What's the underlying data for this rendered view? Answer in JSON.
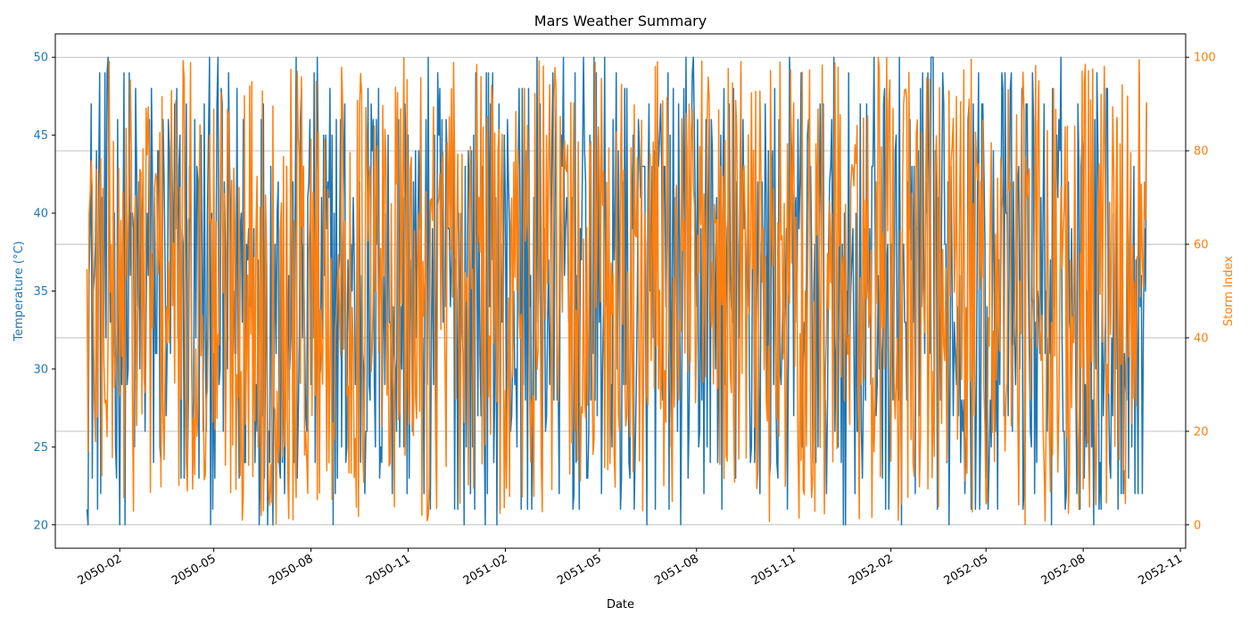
{
  "chart_data": {
    "type": "line",
    "title": "Mars Weather Summary",
    "xlabel": "Date",
    "xlim": [
      "2049-12-02",
      "2052-11-06"
    ],
    "x_start": "2050-01-01",
    "x_end": "2052-09-30",
    "x_step_days": 1,
    "x_ticks": [
      {
        "date": "2050-02-01",
        "label": "2050-02"
      },
      {
        "date": "2050-05-01",
        "label": "2050-05"
      },
      {
        "date": "2050-08-01",
        "label": "2050-08"
      },
      {
        "date": "2050-11-01",
        "label": "2050-11"
      },
      {
        "date": "2051-02-01",
        "label": "2051-02"
      },
      {
        "date": "2051-05-01",
        "label": "2051-05"
      },
      {
        "date": "2051-08-01",
        "label": "2051-08"
      },
      {
        "date": "2051-11-01",
        "label": "2051-11"
      },
      {
        "date": "2052-02-01",
        "label": "2052-02"
      },
      {
        "date": "2052-05-01",
        "label": "2052-05"
      },
      {
        "date": "2052-08-01",
        "label": "2052-08"
      },
      {
        "date": "2052-11-01",
        "label": "2052-11"
      }
    ],
    "y_left": {
      "label": "Temperature (°C)",
      "ylim": [
        18.5,
        51.5
      ],
      "ticks": [
        20,
        25,
        30,
        35,
        40,
        45,
        50
      ],
      "color": "#1f77b4"
    },
    "y_right": {
      "label": "Storm Index",
      "ylim": [
        -5,
        105
      ],
      "ticks": [
        0,
        20,
        40,
        60,
        80,
        100
      ],
      "color": "#ff7f0e",
      "grid": true
    },
    "series": [
      {
        "axis": "left",
        "color": "#1f77b4",
        "values_min": 20,
        "values_max": 50,
        "values_integer": true
      },
      {
        "axis": "right",
        "color": "#ff7f0e",
        "values_min": 0,
        "values_max": 100
      }
    ]
  }
}
